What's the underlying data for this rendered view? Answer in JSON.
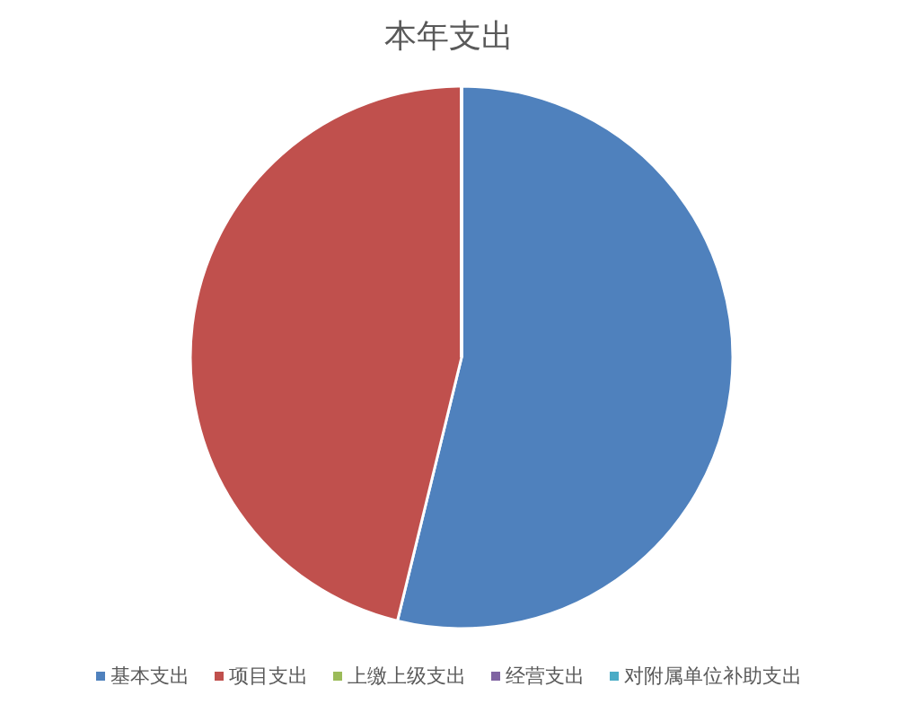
{
  "chart_data": {
    "type": "pie",
    "title": "本年支出",
    "categories": [
      "基本支出",
      "项目支出",
      "上缴上级支出",
      "经营支出",
      "对附属单位补助支出"
    ],
    "values": [
      53.8,
      46.2,
      0,
      0,
      0
    ],
    "colors": [
      "#4f81bd",
      "#c0504d",
      "#9bbb59",
      "#8064a2",
      "#4bacc6"
    ],
    "legend": "bottom"
  }
}
